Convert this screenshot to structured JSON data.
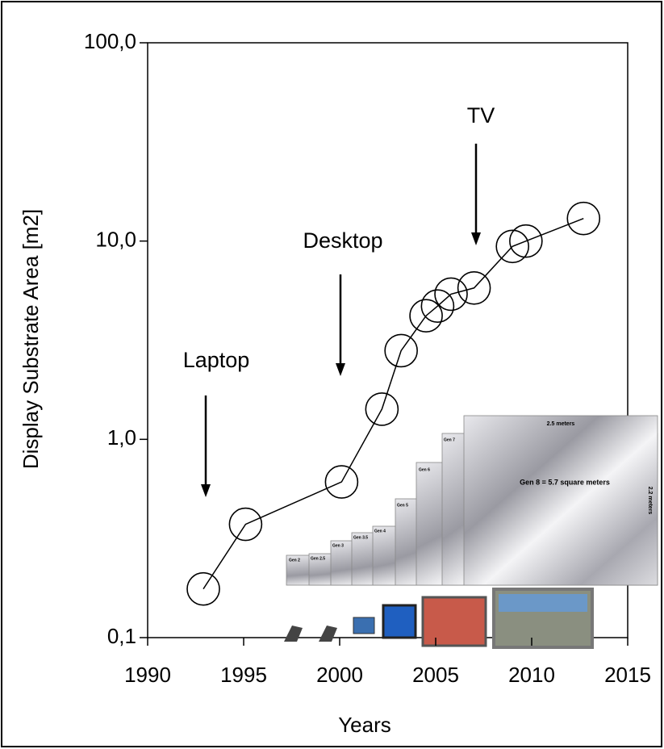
{
  "chart_data": {
    "type": "line",
    "xlabel": "Years",
    "ylabel": "Display Substrate Area [m2]",
    "x": [
      1992.9,
      1995.1,
      2000.1,
      2002.2,
      2003.2,
      2004.5,
      2005.1,
      2005.8,
      2007.0,
      2009.0,
      2009.7,
      2012.7
    ],
    "values": [
      0.176,
      0.373,
      0.61,
      1.42,
      2.8,
      4.2,
      4.7,
      5.4,
      5.8,
      9.4,
      10.0,
      13.0
    ],
    "color": "#000000",
    "marker": "circle",
    "xlim": [
      1990,
      2015
    ],
    "xticks": [
      1990,
      1995,
      2000,
      2005,
      2010,
      2015
    ],
    "ylim": [
      0.1,
      100
    ],
    "log_y": true,
    "yticks": [
      {
        "value": 0.1,
        "label": "0,1"
      },
      {
        "value": 1,
        "label": "1,0"
      },
      {
        "value": 10,
        "label": "10,0"
      },
      {
        "value": 100,
        "label": "100,0"
      }
    ],
    "annotations": [
      "Laptop",
      "Desktop",
      "TV"
    ]
  },
  "inset": {
    "gen_labels": [
      "Gen 2",
      "Gen 2.5",
      "Gen 3",
      "Gen 3.5",
      "Gen 4",
      "Gen 5",
      "Gen 6",
      "Gen 7"
    ],
    "main_label": "Gen 8 = 5.7 square meters",
    "width_label": "2.5 meters",
    "height_label": "2.2 meters"
  }
}
